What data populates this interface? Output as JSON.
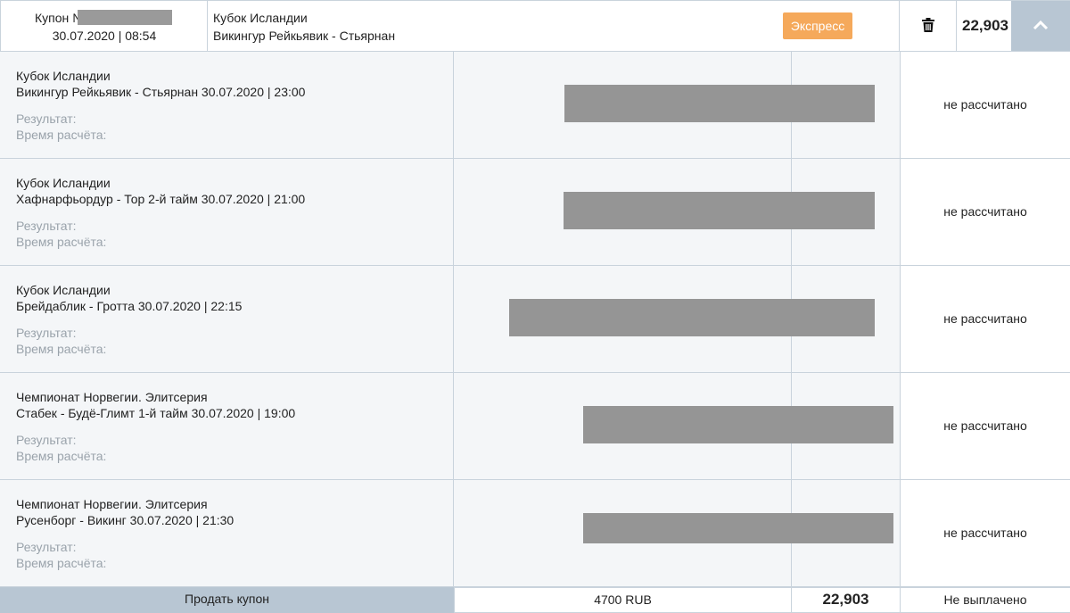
{
  "header": {
    "coupon_label": "Купон №",
    "coupon_datetime": "30.07.2020 | 08:54",
    "league": "Кубок Исландии",
    "match": "Викингур Рейкьявик - Стьярнан",
    "badge": "Экспресс",
    "total": "22,903",
    "trash_icon": "trash-icon",
    "collapse_icon": "chevron-up-icon"
  },
  "rows": [
    {
      "league": "Кубок Исландии",
      "match": "Викингур Рейкьявик - Стьярнан 30.07.2020 | 23:00",
      "result_label": "Результат:",
      "calc_label": "Время расчёта:",
      "status": "не рассчитано"
    },
    {
      "league": "Кубок Исландии",
      "match": "Хафнарфьордур - Тор 2-й тайм 30.07.2020 | 21:00",
      "result_label": "Результат:",
      "calc_label": "Время расчёта:",
      "status": "не рассчитано"
    },
    {
      "league": "Кубок Исландии",
      "match": "Брейдаблик - Гротта 30.07.2020 | 22:15",
      "result_label": "Результат:",
      "calc_label": "Время расчёта:",
      "status": "не рассчитано"
    },
    {
      "league": "Чемпионат Норвегии. Элитсерия",
      "match": "Стабек - Будё-Глимт 1-й тайм 30.07.2020 | 19:00",
      "result_label": "Результат:",
      "calc_label": "Время расчёта:",
      "status": "не рассчитано"
    },
    {
      "league": "Чемпионат Норвегии. Элитсерия",
      "match": "Русенборг - Викинг 30.07.2020 | 21:30",
      "result_label": "Результат:",
      "calc_label": "Время расчёта:",
      "status": "не рассчитано"
    }
  ],
  "footer": {
    "sell_button": "Продать купон",
    "stake": "4700 RUB",
    "total": "22,903",
    "payout_status": "Не выплачено"
  },
  "colors": {
    "badge": "#f5a95b",
    "accent_panel": "#b8c6d3",
    "row_bg": "#f4f6f8",
    "border": "#c9d3dc",
    "muted_text": "#9aa3ab"
  }
}
